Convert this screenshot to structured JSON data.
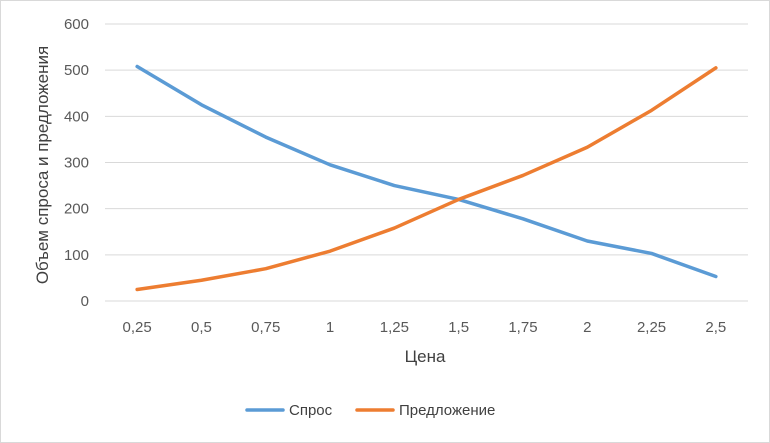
{
  "chart_data": {
    "type": "line",
    "title": "",
    "xlabel": "Цена",
    "ylabel": "Объем спроса и предложения",
    "categories": [
      "0,25",
      "0,5",
      "0,75",
      "1",
      "1,25",
      "1,5",
      "1,75",
      "2",
      "2,25",
      "2,5"
    ],
    "ylim": [
      0,
      600
    ],
    "yticks": [
      0,
      100,
      200,
      300,
      400,
      500,
      600
    ],
    "grid": true,
    "legend_position": "bottom",
    "series": [
      {
        "name": "Спрос",
        "color": "#5b9bd5",
        "values": [
          508,
          425,
          355,
          295,
          250,
          220,
          178,
          130,
          103,
          53
        ]
      },
      {
        "name": "Предложение",
        "color": "#ed7d31",
        "values": [
          25,
          45,
          70,
          108,
          158,
          220,
          272,
          333,
          413,
          505
        ]
      }
    ]
  }
}
